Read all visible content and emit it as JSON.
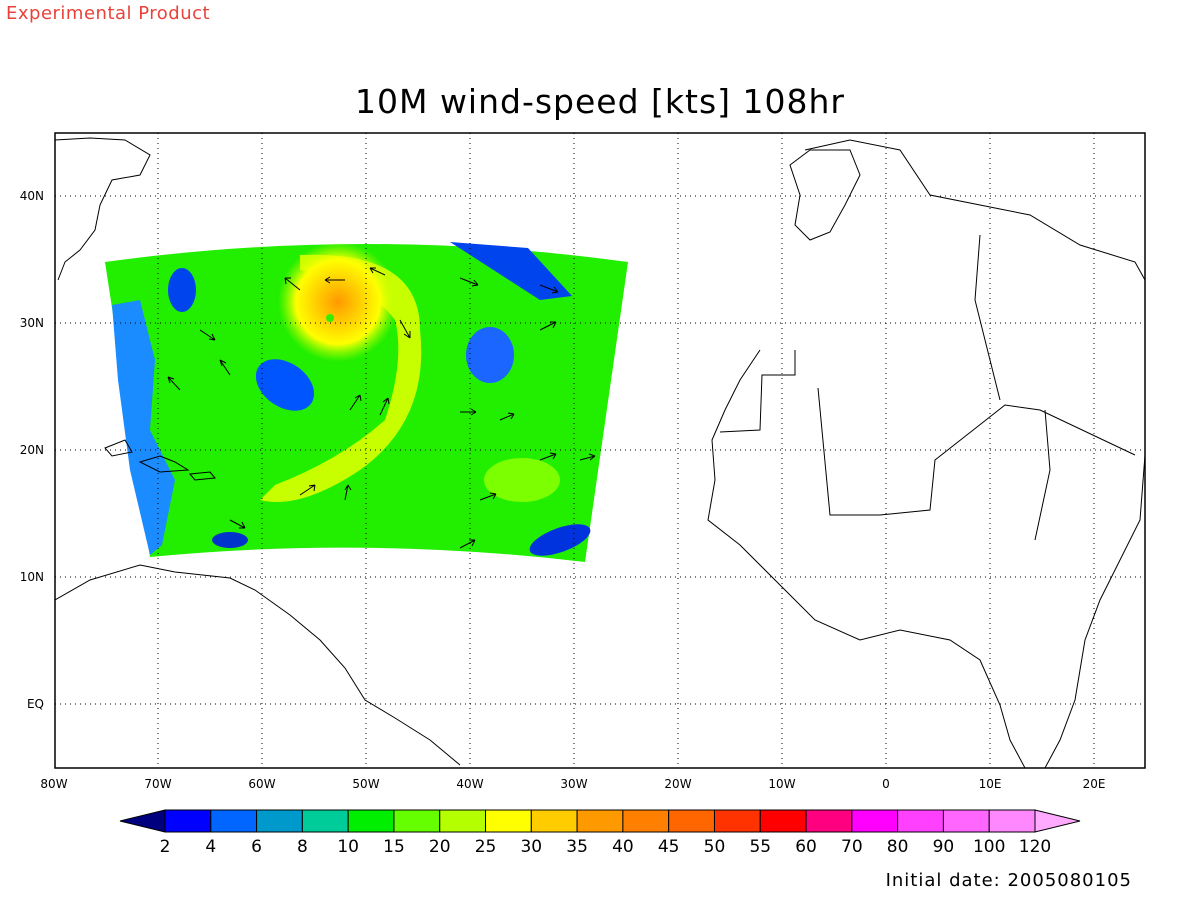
{
  "header": {
    "tag": "Experimental Product"
  },
  "title": "10M wind-speed [kts] 108hr",
  "map": {
    "lon_range": [
      -80,
      25
    ],
    "lat_range": [
      -5,
      45
    ],
    "lon_ticks": [
      "80W",
      "70W",
      "60W",
      "50W",
      "40W",
      "30W",
      "20W",
      "10W",
      "0",
      "10E",
      "20E"
    ],
    "lat_ticks": [
      "40N",
      "30N",
      "20N",
      "10N",
      "EQ"
    ],
    "feature": "hurricane centered near 30.5N 53.5W"
  },
  "colorbar": {
    "labels": [
      "2",
      "4",
      "6",
      "8",
      "10",
      "15",
      "20",
      "25",
      "30",
      "35",
      "40",
      "45",
      "50",
      "55",
      "60",
      "70",
      "80",
      "90",
      "100",
      "120"
    ],
    "colors": [
      "#00007e",
      "#0000ff",
      "#0066ff",
      "#0099cc",
      "#00cc99",
      "#00ee00",
      "#66ff00",
      "#b4ff00",
      "#ffff00",
      "#ffcc00",
      "#ff9900",
      "#ff8000",
      "#ff6600",
      "#ff3300",
      "#ff0000",
      "#ff0080",
      "#ff00ff",
      "#ff40ff",
      "#ff66ff",
      "#ff88ff",
      "#ffaaff"
    ]
  },
  "footer": {
    "initial_date": "Initial date: 2005080105"
  }
}
